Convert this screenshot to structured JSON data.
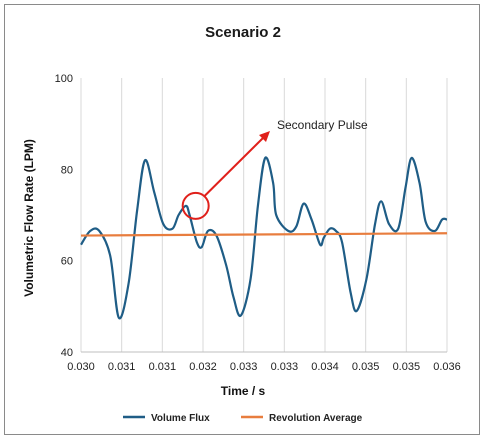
{
  "chart_data": {
    "type": "line",
    "title": "Scenario 2",
    "xlabel": "Time / s",
    "ylabel": "Volumetric Flow Rate (LPM)",
    "xlim": [
      0.03,
      0.036
    ],
    "ylim": [
      40,
      100
    ],
    "x_ticks": [
      "0.030",
      "0.031",
      "0.031",
      "0.032",
      "0.033",
      "0.033",
      "0.034",
      "0.035",
      "0.035",
      "0.036"
    ],
    "y_ticks": [
      "40",
      "60",
      "80",
      "100"
    ],
    "grid": "vertical",
    "legend_position": "bottom",
    "annotation": {
      "text": "Secondary Pulse",
      "x": 0.03188,
      "y": 72
    },
    "series": [
      {
        "name": "Volume Flux",
        "color": "#1f5d86",
        "x": [
          0.03,
          0.03015,
          0.0303,
          0.03048,
          0.03062,
          0.03078,
          0.03092,
          0.03105,
          0.0312,
          0.03135,
          0.0315,
          0.0316,
          0.03172,
          0.03178,
          0.0319,
          0.03198,
          0.03208,
          0.03222,
          0.03238,
          0.0325,
          0.03262,
          0.03278,
          0.0329,
          0.03302,
          0.03315,
          0.0332,
          0.0334,
          0.03353,
          0.03365,
          0.03378,
          0.03392,
          0.03398,
          0.03408,
          0.03418,
          0.03428,
          0.03442,
          0.03452,
          0.03468,
          0.03482,
          0.03492,
          0.03505,
          0.0352,
          0.03532,
          0.03542,
          0.03555,
          0.03565,
          0.0358,
          0.03592,
          0.036
        ],
        "y": [
          63.5,
          66.5,
          66.5,
          61,
          47.5,
          55,
          71,
          82,
          75,
          68,
          67,
          70,
          72,
          70,
          64,
          63,
          66.5,
          65.5,
          59,
          52,
          48,
          56,
          72,
          82.5,
          77,
          70,
          66.5,
          67.5,
          72.5,
          69,
          63.5,
          65,
          67,
          66.5,
          64,
          53,
          49,
          56,
          68,
          73,
          68,
          67,
          76,
          82.5,
          77,
          68.5,
          66.5,
          69,
          69
        ]
      },
      {
        "name": "Revolution Average",
        "color": "#e87d3e",
        "x": [
          0.03,
          0.036
        ],
        "y": [
          65.5,
          66
        ]
      }
    ]
  }
}
